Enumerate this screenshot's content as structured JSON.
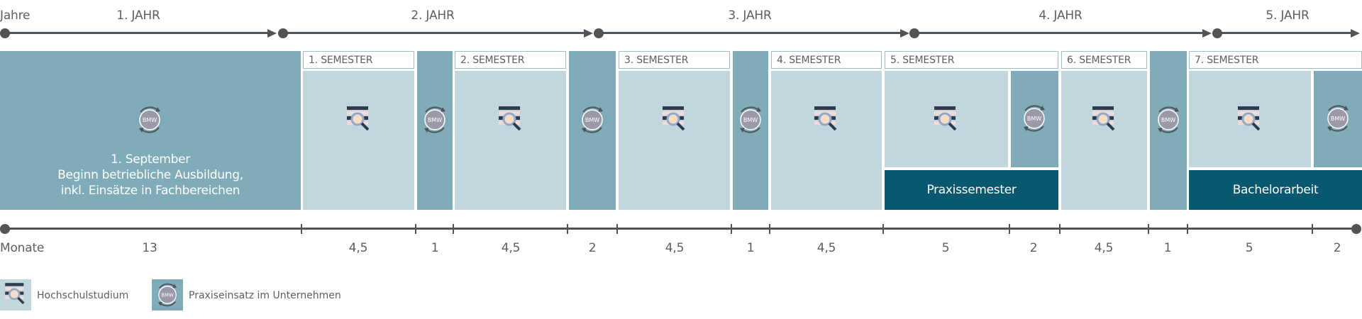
{
  "top_axis": {
    "label": "Jahre",
    "years": [
      "1. JAHR",
      "2. JAHR",
      "3. JAHR",
      "4. JAHR",
      "5. JAHR"
    ]
  },
  "semesters": [
    "1. SEMESTER",
    "2. SEMESTER",
    "3. SEMESTER",
    "4. SEMESTER",
    "5. SEMESTER",
    "6. SEMESTER",
    "7. SEMESTER"
  ],
  "intro_block": {
    "line1": "1. September",
    "line2": "Beginn betriebliche Ausbildung,",
    "line3": "inkl. Einsätze in Fachbereichen"
  },
  "special_blocks": {
    "praxissemester": "Praxissemester",
    "bachelorarbeit": "Bachelorarbeit"
  },
  "bottom_axis": {
    "label": "Monate",
    "values": [
      "13",
      "4,5",
      "1",
      "4,5",
      "2",
      "4,5",
      "1",
      "4,5",
      "5",
      "2",
      "4,5",
      "1",
      "5",
      "2"
    ]
  },
  "bmw_badge": "BMW",
  "legend": {
    "hochschule": "Hochschulstudium",
    "praxis": "Praxiseinsatz im Unternehmen"
  },
  "colors": {
    "praxis": "#80abb8",
    "hochschule": "#c1d6dd",
    "dark": "#08596f",
    "line": "#4f5458"
  },
  "icons": {
    "hochschule": "books-magnifier-icon",
    "praxis": "bmw-cycle-icon"
  }
}
